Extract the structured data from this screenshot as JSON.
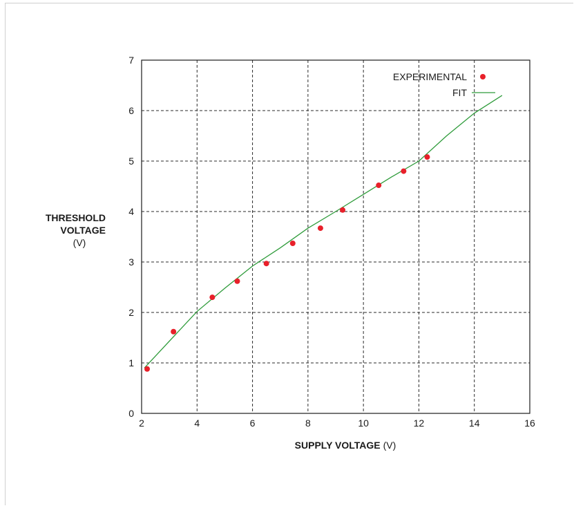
{
  "chart_data": {
    "type": "scatter",
    "xlim": [
      2,
      16
    ],
    "ylim": [
      0,
      7
    ],
    "x_ticks": [
      2,
      4,
      6,
      8,
      10,
      12,
      14,
      16
    ],
    "y_ticks": [
      0,
      1,
      2,
      3,
      4,
      5,
      6,
      7
    ],
    "grid": true,
    "grid_style": "dashed",
    "xlabel_bold": "SUPPLY VOLTAGE",
    "xlabel_unit": "(V)",
    "ylabel_line1": "THRESHOLD",
    "ylabel_line2": "VOLTAGE",
    "ylabel_unit": "(V)",
    "legend_position": "top-right",
    "series": [
      {
        "name": "EXPERIMENTAL",
        "kind": "points",
        "color": "#e8202a",
        "x": [
          2.2,
          3.15,
          4.55,
          5.45,
          6.5,
          7.45,
          8.45,
          9.25,
          10.55,
          11.45,
          12.3
        ],
        "y": [
          0.88,
          1.62,
          2.3,
          2.62,
          2.97,
          3.37,
          3.67,
          4.03,
          4.52,
          4.8,
          5.08
        ]
      },
      {
        "name": "FIT",
        "kind": "line",
        "color": "#2e9b3a",
        "x": [
          2.1,
          4.0,
          5.0,
          6.0,
          7.0,
          8.0,
          9.0,
          10.0,
          11.0,
          12.0,
          13.0,
          14.0,
          15.0
        ],
        "y": [
          0.9,
          2.02,
          2.48,
          2.92,
          3.28,
          3.67,
          4.0,
          4.34,
          4.68,
          5.0,
          5.5,
          5.95,
          6.3
        ]
      }
    ]
  }
}
